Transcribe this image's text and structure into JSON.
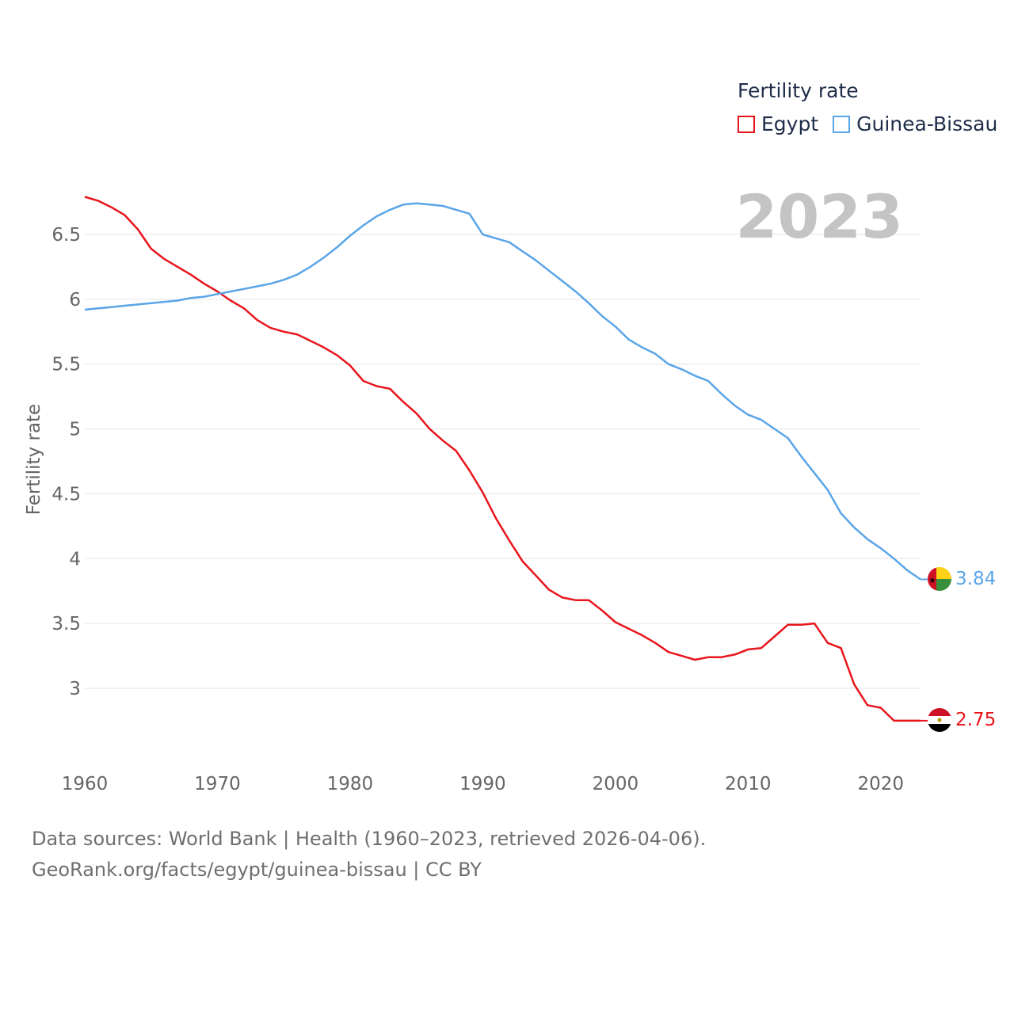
{
  "colors": {
    "egypt": "#e8151c",
    "guinea_bissau": "#5aa5e8",
    "grid": "#e6e6e6",
    "tick_text": "#666666",
    "year_watermark": "#c4c4c4"
  },
  "legend": {
    "title": "Fertility rate",
    "items": [
      {
        "name": "Egypt",
        "color": "#e8151c"
      },
      {
        "name": "Guinea-Bissau",
        "color": "#5aa5e8"
      }
    ]
  },
  "current_year": "2023",
  "end_labels": {
    "egypt": "2.75",
    "guinea_bissau": "3.84"
  },
  "footer": {
    "line1": "Data sources: World Bank | Health (1960–2023, retrieved 2026-04-06).",
    "line2": "GeoRank.org/facts/egypt/guinea-bissau | CC BY"
  },
  "chart_data": {
    "type": "line",
    "title": "Fertility rate",
    "xlabel": "",
    "ylabel": "Fertility rate",
    "xlim": [
      1960,
      2023
    ],
    "ylim": [
      2.5,
      7.0
    ],
    "xticks": [
      1960,
      1970,
      1980,
      1990,
      2000,
      2010,
      2020
    ],
    "yticks": [
      3,
      3.5,
      4,
      4.5,
      5,
      5.5,
      6,
      6.5
    ],
    "ytick_labels": [
      "3",
      "3.5",
      "4",
      "4.5",
      "5",
      "5.5",
      "6",
      "6.5"
    ],
    "x": [
      1960,
      1961,
      1962,
      1963,
      1964,
      1965,
      1966,
      1967,
      1968,
      1969,
      1970,
      1971,
      1972,
      1973,
      1974,
      1975,
      1976,
      1977,
      1978,
      1979,
      1980,
      1981,
      1982,
      1983,
      1984,
      1985,
      1986,
      1987,
      1988,
      1989,
      1990,
      1991,
      1992,
      1993,
      1994,
      1995,
      1996,
      1997,
      1998,
      1999,
      2000,
      2001,
      2002,
      2003,
      2004,
      2005,
      2006,
      2007,
      2008,
      2009,
      2010,
      2011,
      2012,
      2013,
      2014,
      2015,
      2016,
      2017,
      2018,
      2019,
      2020,
      2021,
      2022,
      2023
    ],
    "series": [
      {
        "name": "Egypt",
        "color": "#e8151c",
        "values": [
          6.79,
          6.76,
          6.71,
          6.65,
          6.54,
          6.39,
          6.31,
          6.25,
          6.19,
          6.12,
          6.06,
          5.99,
          5.93,
          5.84,
          5.78,
          5.75,
          5.73,
          5.68,
          5.63,
          5.57,
          5.49,
          5.37,
          5.33,
          5.31,
          5.21,
          5.12,
          5.0,
          4.91,
          4.83,
          4.68,
          4.51,
          4.31,
          4.14,
          3.98,
          3.87,
          3.76,
          3.7,
          3.68,
          3.68,
          3.6,
          3.51,
          3.46,
          3.41,
          3.35,
          3.28,
          3.25,
          3.22,
          3.24,
          3.24,
          3.26,
          3.3,
          3.31,
          3.4,
          3.49,
          3.49,
          3.5,
          3.35,
          3.31,
          3.03,
          2.87,
          2.85,
          2.75,
          2.75,
          2.75
        ]
      },
      {
        "name": "Guinea-Bissau",
        "color": "#5aa5e8",
        "values": [
          5.92,
          5.93,
          5.94,
          5.95,
          5.96,
          5.97,
          5.98,
          5.99,
          6.01,
          6.02,
          6.04,
          6.06,
          6.08,
          6.1,
          6.12,
          6.15,
          6.19,
          6.25,
          6.32,
          6.4,
          6.49,
          6.57,
          6.64,
          6.69,
          6.73,
          6.74,
          6.73,
          6.72,
          6.69,
          6.66,
          6.5,
          6.47,
          6.44,
          6.37,
          6.3,
          6.22,
          6.14,
          6.06,
          5.97,
          5.87,
          5.79,
          5.69,
          5.63,
          5.58,
          5.5,
          5.46,
          5.41,
          5.37,
          5.27,
          5.18,
          5.11,
          5.07,
          5.0,
          4.93,
          4.79,
          4.66,
          4.53,
          4.35,
          4.24,
          4.15,
          4.08,
          4.0,
          3.91,
          3.84
        ]
      }
    ]
  }
}
